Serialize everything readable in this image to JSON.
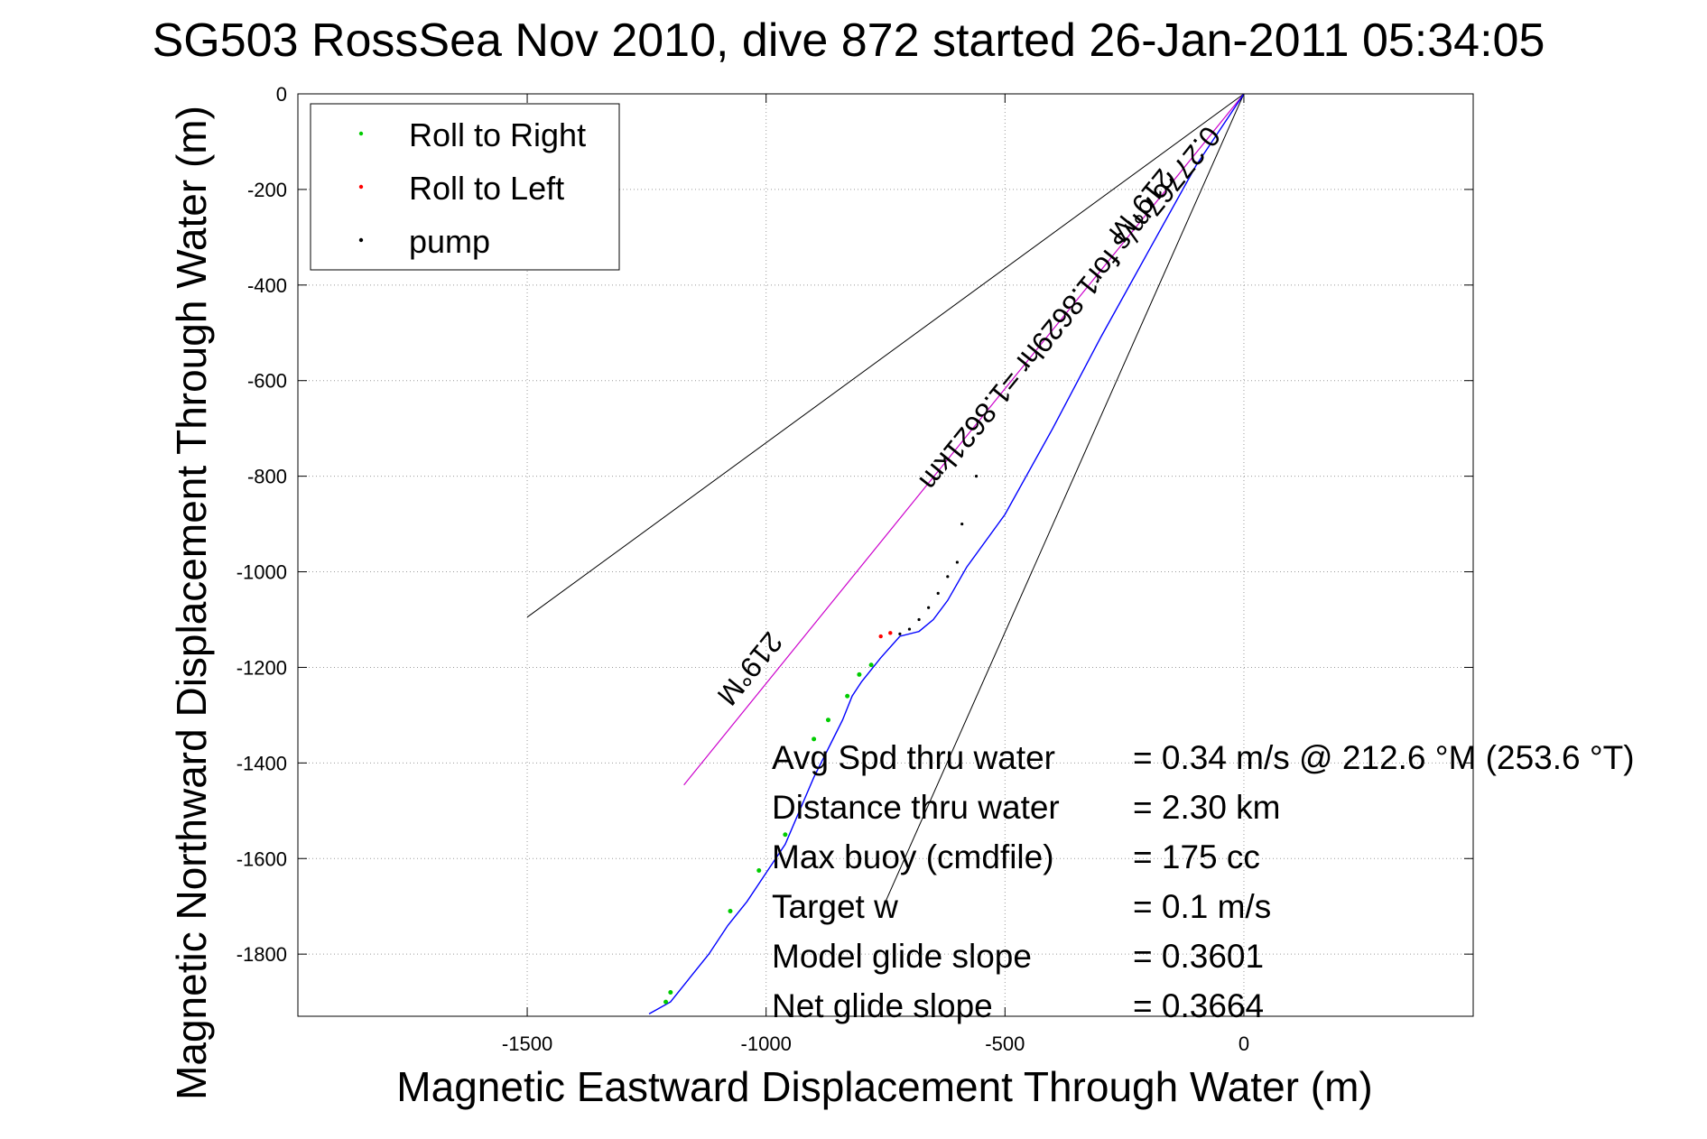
{
  "chart_data": {
    "type": "line",
    "title": "SG503 RossSea Nov 2010, dive 872 started 26-Jan-2011 05:34:05",
    "xlabel": "Magnetic Eastward Displacement Through Water (m)",
    "ylabel": "Magnetic Northward Displacement Through Water (m)",
    "xlim": [
      -1980,
      480
    ],
    "ylim": [
      -1930,
      0
    ],
    "xticks": [
      -1500,
      -1000,
      -500,
      0
    ],
    "yticks": [
      0,
      -200,
      -400,
      -600,
      -800,
      -1000,
      -1200,
      -1400,
      -1600,
      -1800
    ],
    "grid": true,
    "legend": {
      "position": "top-left",
      "entries": [
        {
          "label": "Roll to Right",
          "color": "#00cc00"
        },
        {
          "label": "Roll to Left",
          "color": "#ff0000"
        },
        {
          "label": "pump",
          "color": "#000000"
        }
      ]
    },
    "track": {
      "name": "glider track",
      "color": "#0000ff",
      "x": [
        0,
        -100,
        -200,
        -300,
        -400,
        -500,
        -580,
        -620,
        -650,
        -680,
        -720,
        -760,
        -800,
        -820,
        -840,
        -870,
        -900,
        -930,
        -960,
        -1000,
        -1040,
        -1080,
        -1120,
        -1160,
        -1200,
        -1245
      ],
      "y": [
        0,
        -150,
        -330,
        -510,
        -700,
        -880,
        -990,
        -1060,
        -1100,
        -1125,
        -1135,
        -1180,
        -1230,
        -1260,
        -1310,
        -1370,
        -1430,
        -1500,
        -1570,
        -1630,
        -1690,
        -1740,
        -1800,
        -1850,
        -1900,
        -1925
      ]
    },
    "roll_right": {
      "x": [
        -780,
        -805,
        -830,
        -870,
        -900,
        -960,
        -1015,
        -1075,
        -1200,
        -1210
      ],
      "y": [
        -1195,
        -1215,
        -1260,
        -1310,
        -1350,
        -1550,
        -1625,
        -1710,
        -1880,
        -1900
      ]
    },
    "roll_left": {
      "x": [
        -740,
        -760
      ],
      "y": [
        -1128,
        -1135
      ]
    },
    "pump": {
      "x": [
        -700,
        -680,
        -660,
        -640,
        -620,
        -600,
        -590,
        -560,
        -720
      ],
      "y": [
        -1120,
        -1100,
        -1075,
        -1045,
        -1010,
        -980,
        -900,
        -800,
        -1130
      ]
    },
    "heading_line": {
      "label": "0.27767m/s for1.8629hr =1.8621km",
      "color": "#cc00cc",
      "x": [
        0,
        -1172
      ],
      "y": [
        0,
        -1446
      ]
    },
    "heading_label_text": "219°M",
    "cone_lines": {
      "color": "#000000",
      "lines": [
        {
          "x": [
            0,
            -1500
          ],
          "y": [
            0,
            -1095
          ]
        },
        {
          "x": [
            0,
            -750
          ],
          "y": [
            0,
            -1690
          ]
        }
      ]
    },
    "annotation_lines": [
      {
        "label": "Avg Spd thru water",
        "value": "=  0.34 m/s @ 212.6 °M (253.6 °T)"
      },
      {
        "label": "Distance thru water",
        "value": "=  2.30 km"
      },
      {
        "label": "Max buoy (cmdfile)",
        "value": "= 175 cc"
      },
      {
        "label": "Target w",
        "value": "= 0.1 m/s"
      },
      {
        "label": "Model glide slope",
        "value": "= 0.3601"
      },
      {
        "label": "Net glide slope",
        "value": "= 0.3664"
      }
    ]
  }
}
